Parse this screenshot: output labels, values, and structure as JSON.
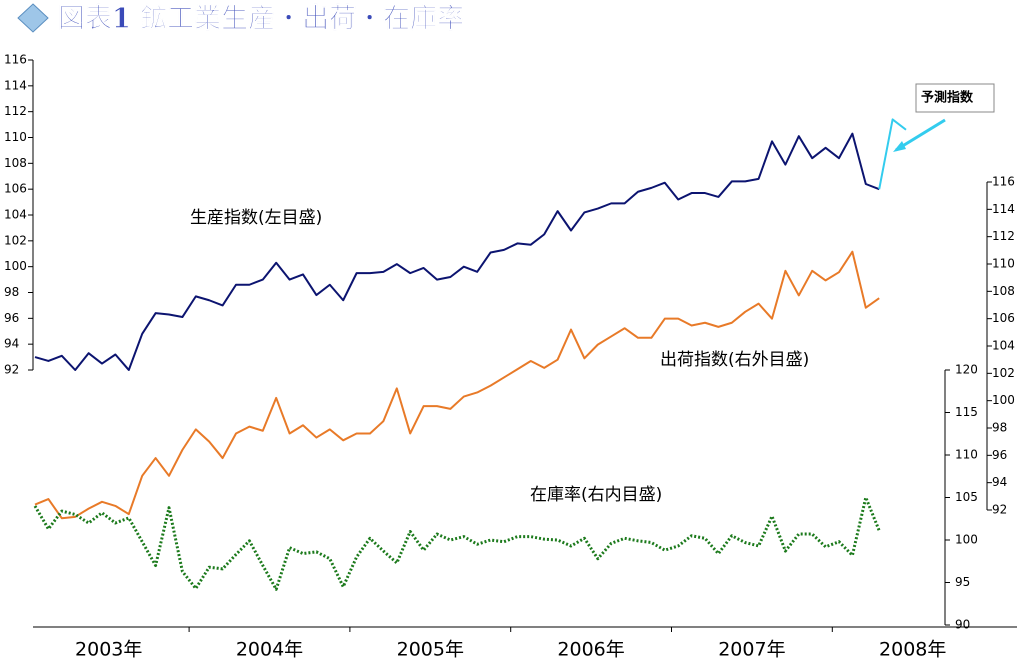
{
  "chart_data": {
    "type": "line",
    "title": "図表1 鉱工業生産・出荷・在庫率",
    "x_labels": [
      "2003年",
      "2004年",
      "2005年",
      "2006年",
      "2007年",
      "2008年"
    ],
    "ylim": [
      92,
      116
    ],
    "yticks": [
      92,
      94,
      96,
      98,
      100,
      102,
      104,
      106,
      108,
      110,
      112,
      114,
      116
    ],
    "y2lim": [
      92,
      116
    ],
    "y2ticks": [
      92,
      94,
      96,
      98,
      100,
      102,
      104,
      106,
      108,
      110,
      112,
      114,
      116
    ],
    "y3lim": [
      90,
      120
    ],
    "y3ticks": [
      90,
      95,
      100,
      105,
      110,
      115,
      120
    ],
    "series": [
      {
        "name": "生産指数(左目盛)",
        "color": "#0c1470",
        "axis": "y",
        "values": [
          93.0,
          92.7,
          93.1,
          92.0,
          93.3,
          92.5,
          93.2,
          92.0,
          94.8,
          96.4,
          96.3,
          96.1,
          97.7,
          97.4,
          97.0,
          98.6,
          98.6,
          99.0,
          100.3,
          99.0,
          99.4,
          97.8,
          98.6,
          97.4,
          99.5,
          99.5,
          99.6,
          100.2,
          99.5,
          99.9,
          99.0,
          99.2,
          100.0,
          99.6,
          101.1,
          101.3,
          101.8,
          101.7,
          102.5,
          104.3,
          102.8,
          104.2,
          104.5,
          104.9,
          104.9,
          105.8,
          106.1,
          106.5,
          105.2,
          105.7,
          105.7,
          105.4,
          106.6,
          106.6,
          106.8,
          109.7,
          107.9,
          110.1,
          108.4,
          109.2,
          108.4,
          110.3,
          106.4,
          106.0,
          null,
          null
        ]
      },
      {
        "name": "予測指数",
        "color": "#33ccee",
        "axis": "y",
        "values": [
          null,
          null,
          null,
          null,
          null,
          null,
          null,
          null,
          null,
          null,
          null,
          null,
          null,
          null,
          null,
          null,
          null,
          null,
          null,
          null,
          null,
          null,
          null,
          null,
          null,
          null,
          null,
          null,
          null,
          null,
          null,
          null,
          null,
          null,
          null,
          null,
          null,
          null,
          null,
          null,
          null,
          null,
          null,
          null,
          null,
          null,
          null,
          null,
          null,
          null,
          null,
          null,
          null,
          null,
          null,
          null,
          null,
          null,
          null,
          null,
          null,
          null,
          null,
          106.0,
          111.4,
          110.6
        ]
      },
      {
        "name": "出荷指数(右外目盛)",
        "color": "#e87a28",
        "axis": "y2",
        "values": [
          92.4,
          92.8,
          91.4,
          91.5,
          92.1,
          92.6,
          92.3,
          91.7,
          94.5,
          95.8,
          94.5,
          96.4,
          97.9,
          97.0,
          95.8,
          97.6,
          98.1,
          97.8,
          100.2,
          97.6,
          98.2,
          97.3,
          97.9,
          97.1,
          97.6,
          97.6,
          98.5,
          100.9,
          97.6,
          99.6,
          99.6,
          99.4,
          100.3,
          100.6,
          101.1,
          101.7,
          102.3,
          102.9,
          102.4,
          103.0,
          105.2,
          103.1,
          104.1,
          104.7,
          105.3,
          104.6,
          104.6,
          106.0,
          106.0,
          105.5,
          105.7,
          105.4,
          105.7,
          106.5,
          107.1,
          106.0,
          109.5,
          107.7,
          109.5,
          108.8,
          109.4,
          110.9,
          106.8,
          107.5,
          null,
          null
        ]
      },
      {
        "name": "在庫率(右内目盛)",
        "color": "#1c7a1c",
        "axis": "y3",
        "values": [
          104.0,
          101.3,
          103.4,
          103.0,
          102.0,
          103.2,
          102.0,
          102.6,
          99.8,
          97.0,
          103.8,
          96.3,
          94.3,
          96.8,
          96.6,
          98.3,
          99.9,
          97.0,
          94.2,
          99.1,
          98.4,
          98.6,
          97.8,
          94.5,
          98.0,
          100.2,
          98.7,
          97.3,
          101.0,
          98.8,
          100.7,
          100.0,
          100.4,
          99.5,
          100.0,
          99.8,
          100.4,
          100.4,
          100.1,
          100.0,
          99.3,
          100.2,
          97.8,
          99.6,
          100.2,
          99.9,
          99.7,
          98.8,
          99.3,
          100.5,
          100.2,
          98.4,
          100.5,
          99.7,
          99.3,
          102.8,
          98.7,
          100.7,
          100.7,
          99.2,
          99.8,
          98.2,
          105.0,
          101.1,
          null,
          null
        ]
      }
    ]
  }
}
